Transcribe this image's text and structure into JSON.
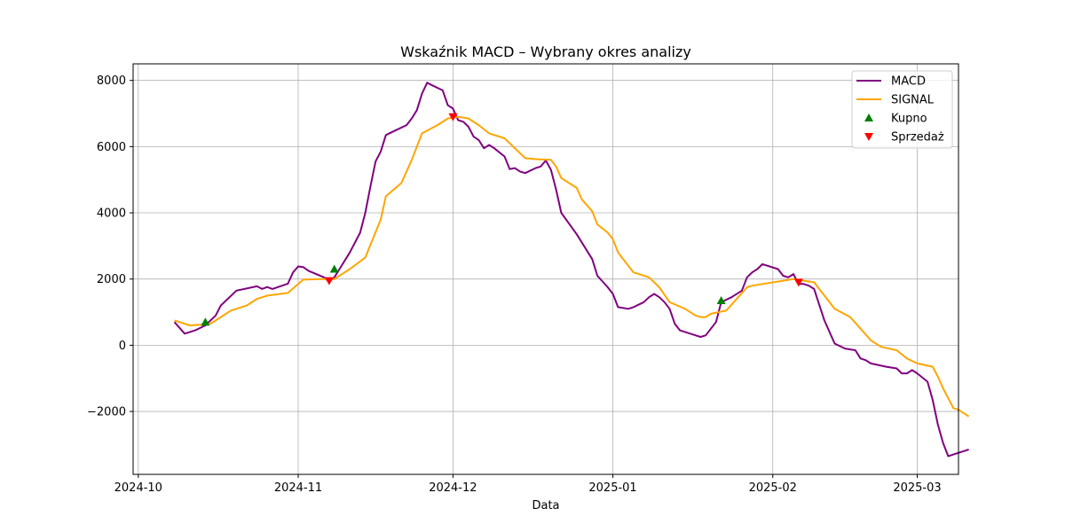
{
  "chart_data": {
    "type": "line",
    "title": "Wskaźnik MACD – Wybrany okres analizy",
    "xlabel": "Data",
    "ylabel": "",
    "x_axis_type": "date",
    "xlim": [
      "2024-09-30",
      "2025-03-09"
    ],
    "ylim": [
      -3900,
      8500
    ],
    "x_ticks": [
      "2024-10-01",
      "2024-11-01",
      "2024-12-01",
      "2025-01-01",
      "2025-02-01",
      "2025-03-01"
    ],
    "x_tick_labels": [
      "2024-10",
      "2024-11",
      "2024-12",
      "2025-01",
      "2025-02",
      "2025-03"
    ],
    "y_ticks": [
      -2000,
      0,
      2000,
      4000,
      6000,
      8000
    ],
    "y_tick_labels": [
      "−2000",
      "0",
      "2000",
      "4000",
      "6000",
      "8000"
    ],
    "grid": true,
    "legend_position": "top-right",
    "series": [
      {
        "name": "MACD",
        "color": "#800080",
        "points": [
          [
            "2024-10-08",
            700
          ],
          [
            "2024-10-10",
            350
          ],
          [
            "2024-10-12",
            450
          ],
          [
            "2024-10-14",
            600
          ],
          [
            "2024-10-15",
            750
          ],
          [
            "2024-10-16",
            900
          ],
          [
            "2024-10-17",
            1200
          ],
          [
            "2024-10-18",
            1350
          ],
          [
            "2024-10-20",
            1650
          ],
          [
            "2024-10-24",
            1780
          ],
          [
            "2024-10-25",
            1700
          ],
          [
            "2024-10-26",
            1760
          ],
          [
            "2024-10-27",
            1700
          ],
          [
            "2024-10-30",
            1860
          ],
          [
            "2024-10-31",
            2200
          ],
          [
            "2024-11-01",
            2380
          ],
          [
            "2024-11-02",
            2360
          ],
          [
            "2024-11-03",
            2250
          ],
          [
            "2024-11-06",
            2050
          ],
          [
            "2024-11-07",
            1920
          ],
          [
            "2024-11-08",
            2050
          ],
          [
            "2024-11-09",
            2300
          ],
          [
            "2024-11-11",
            2800
          ],
          [
            "2024-11-13",
            3400
          ],
          [
            "2024-11-14",
            4000
          ],
          [
            "2024-11-15",
            4800
          ],
          [
            "2024-11-16",
            5550
          ],
          [
            "2024-11-17",
            5850
          ],
          [
            "2024-11-18",
            6350
          ],
          [
            "2024-11-20",
            6500
          ],
          [
            "2024-11-22",
            6650
          ],
          [
            "2024-11-23",
            6850
          ],
          [
            "2024-11-24",
            7100
          ],
          [
            "2024-11-25",
            7600
          ],
          [
            "2024-11-26",
            7930
          ],
          [
            "2024-11-27",
            7850
          ],
          [
            "2024-11-29",
            7700
          ],
          [
            "2024-11-30",
            7250
          ],
          [
            "2024-12-01",
            7150
          ],
          [
            "2024-12-02",
            6800
          ],
          [
            "2024-12-03",
            6750
          ],
          [
            "2024-12-04",
            6600
          ],
          [
            "2024-12-05",
            6300
          ],
          [
            "2024-12-06",
            6200
          ],
          [
            "2024-12-07",
            5950
          ],
          [
            "2024-12-08",
            6050
          ],
          [
            "2024-12-09",
            5950
          ],
          [
            "2024-12-11",
            5700
          ],
          [
            "2024-12-12",
            5320
          ],
          [
            "2024-12-13",
            5350
          ],
          [
            "2024-12-14",
            5250
          ],
          [
            "2024-12-15",
            5200
          ],
          [
            "2024-12-17",
            5350
          ],
          [
            "2024-12-18",
            5400
          ],
          [
            "2024-12-19",
            5580
          ],
          [
            "2024-12-20",
            5300
          ],
          [
            "2024-12-21",
            4700
          ],
          [
            "2024-12-22",
            4000
          ],
          [
            "2024-12-25",
            3350
          ],
          [
            "2024-12-28",
            2600
          ],
          [
            "2024-12-29",
            2100
          ],
          [
            "2024-12-31",
            1750
          ],
          [
            "2025-01-01",
            1550
          ],
          [
            "2025-01-02",
            1150
          ],
          [
            "2025-01-04",
            1100
          ],
          [
            "2025-01-05",
            1150
          ],
          [
            "2025-01-07",
            1300
          ],
          [
            "2025-01-08",
            1450
          ],
          [
            "2025-01-09",
            1550
          ],
          [
            "2025-01-10",
            1450
          ],
          [
            "2025-01-11",
            1300
          ],
          [
            "2025-01-12",
            1100
          ],
          [
            "2025-01-13",
            650
          ],
          [
            "2025-01-14",
            450
          ],
          [
            "2025-01-16",
            350
          ],
          [
            "2025-01-17",
            300
          ],
          [
            "2025-01-18",
            250
          ],
          [
            "2025-01-19",
            300
          ],
          [
            "2025-01-20",
            500
          ],
          [
            "2025-01-21",
            700
          ],
          [
            "2025-01-22",
            1300
          ],
          [
            "2025-01-24",
            1450
          ],
          [
            "2025-01-26",
            1650
          ],
          [
            "2025-01-27",
            2050
          ],
          [
            "2025-01-28",
            2200
          ],
          [
            "2025-01-29",
            2300
          ],
          [
            "2025-01-30",
            2450
          ],
          [
            "2025-02-02",
            2300
          ],
          [
            "2025-02-03",
            2100
          ],
          [
            "2025-02-04",
            2050
          ],
          [
            "2025-02-05",
            2150
          ],
          [
            "2025-02-06",
            1850
          ],
          [
            "2025-02-07",
            1850
          ],
          [
            "2025-02-08",
            1800
          ],
          [
            "2025-02-09",
            1700
          ],
          [
            "2025-02-11",
            750
          ],
          [
            "2025-02-13",
            50
          ],
          [
            "2025-02-15",
            -100
          ],
          [
            "2025-02-17",
            -150
          ],
          [
            "2025-02-18",
            -400
          ],
          [
            "2025-02-19",
            -450
          ],
          [
            "2025-02-20",
            -550
          ],
          [
            "2025-02-23",
            -650
          ],
          [
            "2025-02-25",
            -700
          ],
          [
            "2025-02-26",
            -850
          ],
          [
            "2025-02-27",
            -850
          ],
          [
            "2025-02-28",
            -750
          ],
          [
            "2025-03-01",
            -850
          ],
          [
            "2025-03-03",
            -1100
          ],
          [
            "2025-03-04",
            -1650
          ],
          [
            "2025-03-05",
            -2400
          ],
          [
            "2025-03-06",
            -2950
          ],
          [
            "2025-03-07",
            -3350
          ],
          [
            "2025-03-08",
            -3300
          ],
          [
            "2025-03-11",
            -3150
          ]
        ]
      },
      {
        "name": "SIGNAL",
        "color": "#ffa500",
        "points": [
          [
            "2024-10-08",
            750
          ],
          [
            "2024-10-11",
            600
          ],
          [
            "2024-10-14",
            630
          ],
          [
            "2024-10-15",
            650
          ],
          [
            "2024-10-17",
            850
          ],
          [
            "2024-10-19",
            1050
          ],
          [
            "2024-10-22",
            1200
          ],
          [
            "2024-10-24",
            1400
          ],
          [
            "2024-10-26",
            1500
          ],
          [
            "2024-10-30",
            1580
          ],
          [
            "2024-11-01",
            1850
          ],
          [
            "2024-11-02",
            1980
          ],
          [
            "2024-11-05",
            2000
          ],
          [
            "2024-11-08",
            2000
          ],
          [
            "2024-11-11",
            2300
          ],
          [
            "2024-11-14",
            2650
          ],
          [
            "2024-11-17",
            3800
          ],
          [
            "2024-11-18",
            4500
          ],
          [
            "2024-11-21",
            4900
          ],
          [
            "2024-11-23",
            5600
          ],
          [
            "2024-11-25",
            6400
          ],
          [
            "2024-11-28",
            6650
          ],
          [
            "2024-11-30",
            6850
          ],
          [
            "2024-12-02",
            6900
          ],
          [
            "2024-12-04",
            6850
          ],
          [
            "2024-12-06",
            6650
          ],
          [
            "2024-12-08",
            6400
          ],
          [
            "2024-12-11",
            6250
          ],
          [
            "2024-12-13",
            5950
          ],
          [
            "2024-12-15",
            5650
          ],
          [
            "2024-12-17",
            5620
          ],
          [
            "2024-12-20",
            5600
          ],
          [
            "2024-12-21",
            5400
          ],
          [
            "2024-12-22",
            5050
          ],
          [
            "2024-12-25",
            4750
          ],
          [
            "2024-12-26",
            4400
          ],
          [
            "2024-12-28",
            4050
          ],
          [
            "2024-12-29",
            3650
          ],
          [
            "2024-12-31",
            3400
          ],
          [
            "2025-01-01",
            3200
          ],
          [
            "2025-01-02",
            2800
          ],
          [
            "2025-01-03",
            2600
          ],
          [
            "2025-01-05",
            2200
          ],
          [
            "2025-01-08",
            2050
          ],
          [
            "2025-01-10",
            1750
          ],
          [
            "2025-01-12",
            1300
          ],
          [
            "2025-01-15",
            1100
          ],
          [
            "2025-01-17",
            900
          ],
          [
            "2025-01-18",
            850
          ],
          [
            "2025-01-19",
            850
          ],
          [
            "2025-01-20",
            950
          ],
          [
            "2025-01-23",
            1050
          ],
          [
            "2025-01-25",
            1400
          ],
          [
            "2025-01-27",
            1750
          ],
          [
            "2025-01-28",
            1800
          ],
          [
            "2025-01-30",
            1850
          ],
          [
            "2025-02-03",
            1950
          ],
          [
            "2025-02-05",
            2000
          ],
          [
            "2025-02-07",
            1950
          ],
          [
            "2025-02-09",
            1900
          ],
          [
            "2025-02-11",
            1500
          ],
          [
            "2025-02-13",
            1100
          ],
          [
            "2025-02-16",
            850
          ],
          [
            "2025-02-18",
            500
          ],
          [
            "2025-02-20",
            150
          ],
          [
            "2025-02-22",
            -50
          ],
          [
            "2025-02-25",
            -150
          ],
          [
            "2025-02-27",
            -400
          ],
          [
            "2025-03-01",
            -550
          ],
          [
            "2025-03-04",
            -650
          ],
          [
            "2025-03-05",
            -950
          ],
          [
            "2025-03-06",
            -1300
          ],
          [
            "2025-03-08",
            -1900
          ],
          [
            "2025-03-09",
            -1950
          ],
          [
            "2025-03-11",
            -2150
          ]
        ]
      }
    ],
    "markers": [
      {
        "name": "Kupno",
        "color": "#008000",
        "symbol": "triangle-up",
        "points": [
          [
            "2024-10-14",
            700
          ],
          [
            "2024-11-08",
            2300
          ],
          [
            "2025-01-22",
            1350
          ]
        ]
      },
      {
        "name": "Sprzedaż",
        "color": "#ff0000",
        "symbol": "triangle-down",
        "points": [
          [
            "2024-11-07",
            1950
          ],
          [
            "2024-12-01",
            6900
          ],
          [
            "2025-02-06",
            1900
          ]
        ]
      }
    ]
  }
}
